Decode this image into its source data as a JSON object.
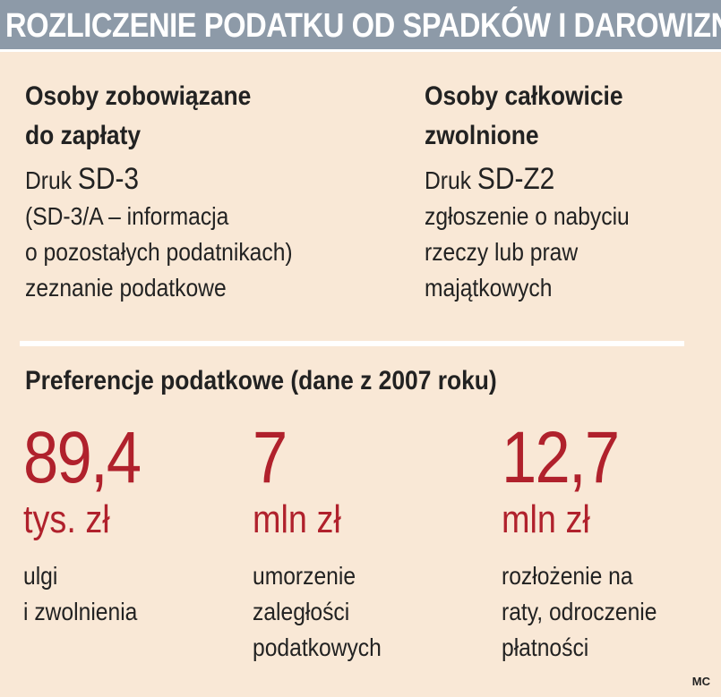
{
  "header": {
    "title": "ROZLICZENIE PODATKU OD SPADKÓW I DAROWIZN"
  },
  "left_column": {
    "heading_line1": "Osoby zobowiązane",
    "heading_line2": "do zapłaty",
    "druk_label": "Druk",
    "druk_code": "SD-3",
    "lines": [
      "(SD-3/A – informacja",
      "o pozostałych podatnikach)",
      "zeznanie podatkowe"
    ]
  },
  "right_column": {
    "heading_line1": "Osoby całkowicie",
    "heading_line2": "zwolnione",
    "druk_label": "Druk",
    "druk_code": "SD-Z2",
    "lines": [
      "zgłoszenie o nabyciu",
      "rzeczy lub praw",
      "majątkowych"
    ]
  },
  "preferences": {
    "title": "Preferencje podatkowe (dane z 2007 roku)",
    "stats": [
      {
        "value": "89,4",
        "unit": "tys. zł",
        "desc": [
          "ulgi",
          "i zwolnienia"
        ]
      },
      {
        "value": "7",
        "unit": "mln zł",
        "desc": [
          "umorzenie",
          "zaległości",
          "podatkowych"
        ]
      },
      {
        "value": "12,7",
        "unit": "mln zł",
        "desc": [
          "rozłożenie na",
          "raty, odroczenie",
          "płatności"
        ]
      }
    ]
  },
  "credit": "MC",
  "colors": {
    "background": "#f9e8d6",
    "header_bg": "#8d9aa8",
    "accent_red": "#b0212c",
    "text": "#222222"
  }
}
